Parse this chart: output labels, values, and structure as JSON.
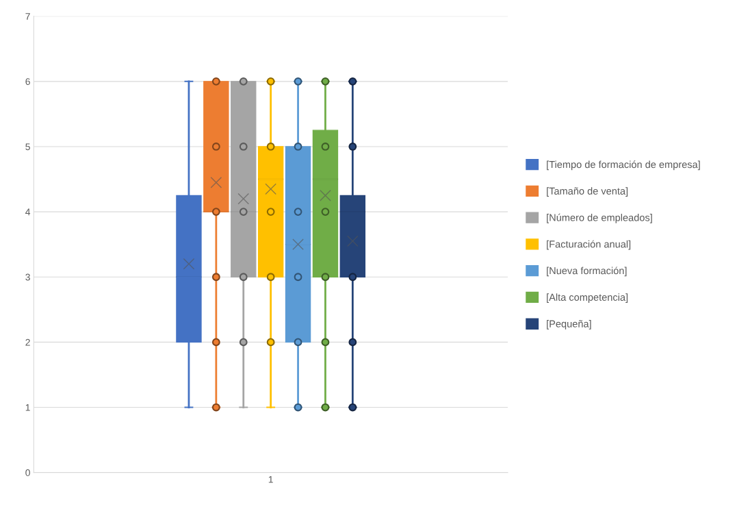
{
  "chart_data": {
    "type": "box",
    "categories": [
      "1"
    ],
    "ylim": [
      0,
      7
    ],
    "yticks": [
      0,
      1,
      2,
      3,
      4,
      5,
      6,
      7
    ],
    "grid": "y",
    "legend": "right",
    "marker": "circle",
    "series": [
      {
        "name": "[Tiempo de formación de empresa]",
        "color": "#4472c4",
        "boxes": [
          {
            "low": 1,
            "q1": 2,
            "median": 3,
            "q3": 4.25,
            "high": 6,
            "mean": 3.2
          }
        ]
      },
      {
        "name": "[Tamaño de venta]",
        "color": "#ed7d31",
        "boxes": [
          {
            "low": 1,
            "q1": 4,
            "median": 4,
            "q3": 6,
            "high": 6,
            "mean": 4.45,
            "outliers": [
              1,
              2,
              3,
              4,
              5,
              6
            ]
          }
        ]
      },
      {
        "name": "[Número de empleados]",
        "color": "#a5a5a5",
        "boxes": [
          {
            "low": 1,
            "q1": 3,
            "median": 4,
            "q3": 6,
            "high": 6,
            "mean": 4.2,
            "outliers": [
              2,
              3,
              4,
              5,
              6
            ]
          }
        ]
      },
      {
        "name": "[Facturación anual]",
        "color": "#ffc000",
        "boxes": [
          {
            "low": 1,
            "q1": 3,
            "median": 4.5,
            "q3": 5,
            "high": 6,
            "mean": 4.35,
            "outliers": [
              2,
              3,
              4,
              5,
              6
            ]
          }
        ]
      },
      {
        "name": "[Nueva formación]",
        "color": "#5b9bd5",
        "boxes": [
          {
            "low": 1,
            "q1": 2,
            "median": 3.5,
            "q3": 5,
            "high": 6,
            "mean": 3.5,
            "outliers": [
              1,
              2,
              3,
              4,
              5,
              6
            ]
          }
        ]
      },
      {
        "name": "[Alta competencia]",
        "color": "#70ad47",
        "boxes": [
          {
            "low": 1,
            "q1": 3,
            "median": 4.5,
            "q3": 5.25,
            "high": 6,
            "mean": 4.25,
            "outliers": [
              1,
              2,
              3,
              4,
              5,
              6
            ]
          }
        ]
      },
      {
        "name": "[Pequeña]",
        "color": "#264478",
        "boxes": [
          {
            "low": 1,
            "q1": 3,
            "median": 4,
            "q3": 4.25,
            "high": 6,
            "mean": 3.55,
            "outliers": [
              1,
              2,
              3,
              5,
              6
            ]
          }
        ]
      }
    ]
  }
}
